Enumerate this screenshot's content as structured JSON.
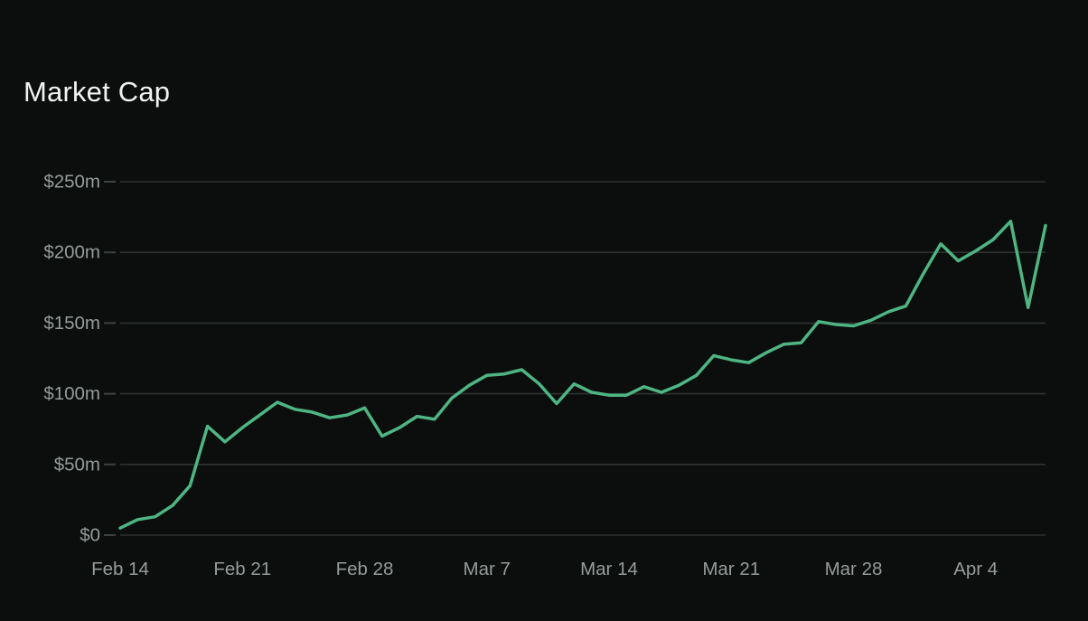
{
  "title": "Market Cap",
  "colors": {
    "background": "#0b0e0d",
    "title": "#f1f3f2",
    "axis_label": "#969c98",
    "gridline": "#2d3230",
    "tick": "#3d423f",
    "line": "#4eb583"
  },
  "chart_data": {
    "type": "line",
    "title": "Market Cap",
    "xlabel": "",
    "ylabel": "",
    "ylim": [
      0,
      250
    ],
    "grid": true,
    "legend": "none",
    "unit": "$m (millions USD)",
    "y_ticks": [
      {
        "value": 0,
        "label": "$0"
      },
      {
        "value": 50,
        "label": "$50m"
      },
      {
        "value": 100,
        "label": "$100m"
      },
      {
        "value": 150,
        "label": "$150m"
      },
      {
        "value": 200,
        "label": "$200m"
      },
      {
        "value": 250,
        "label": "$250m"
      }
    ],
    "x_ticks": [
      {
        "label": "Feb 14",
        "day_index": 0
      },
      {
        "label": "Feb 21",
        "day_index": 7
      },
      {
        "label": "Feb 28",
        "day_index": 14
      },
      {
        "label": "Mar 7",
        "day_index": 21
      },
      {
        "label": "Mar 14",
        "day_index": 28
      },
      {
        "label": "Mar 21",
        "day_index": 35
      },
      {
        "label": "Mar 28",
        "day_index": 42
      },
      {
        "label": "Apr 4",
        "day_index": 49
      }
    ],
    "x": [
      "Feb 14",
      "Feb 15",
      "Feb 16",
      "Feb 17",
      "Feb 18",
      "Feb 19",
      "Feb 20",
      "Feb 21",
      "Feb 22",
      "Feb 23",
      "Feb 24",
      "Feb 25",
      "Feb 26",
      "Feb 27",
      "Feb 28",
      "Mar 1",
      "Mar 2",
      "Mar 3",
      "Mar 4",
      "Mar 5",
      "Mar 6",
      "Mar 7",
      "Mar 8",
      "Mar 9",
      "Mar 10",
      "Mar 11",
      "Mar 12",
      "Mar 13",
      "Mar 14",
      "Mar 15",
      "Mar 16",
      "Mar 17",
      "Mar 18",
      "Mar 19",
      "Mar 20",
      "Mar 21",
      "Mar 22",
      "Mar 23",
      "Mar 24",
      "Mar 25",
      "Mar 26",
      "Mar 27",
      "Mar 28",
      "Mar 29",
      "Mar 30",
      "Mar 31",
      "Apr 1",
      "Apr 2",
      "Apr 3",
      "Apr 4",
      "Apr 5",
      "Apr 6",
      "Apr 7",
      "Apr 8"
    ],
    "values": [
      5,
      11,
      13,
      21,
      35,
      77,
      66,
      76,
      85,
      94,
      89,
      87,
      83,
      85,
      90,
      70,
      76,
      84,
      82,
      97,
      106,
      113,
      114,
      117,
      107,
      93,
      107,
      101,
      99,
      99,
      105,
      101,
      106,
      113,
      127,
      124,
      122,
      129,
      135,
      136,
      151,
      149,
      148,
      152,
      158,
      162,
      185,
      206,
      194,
      201,
      209,
      222,
      161,
      219
    ]
  }
}
